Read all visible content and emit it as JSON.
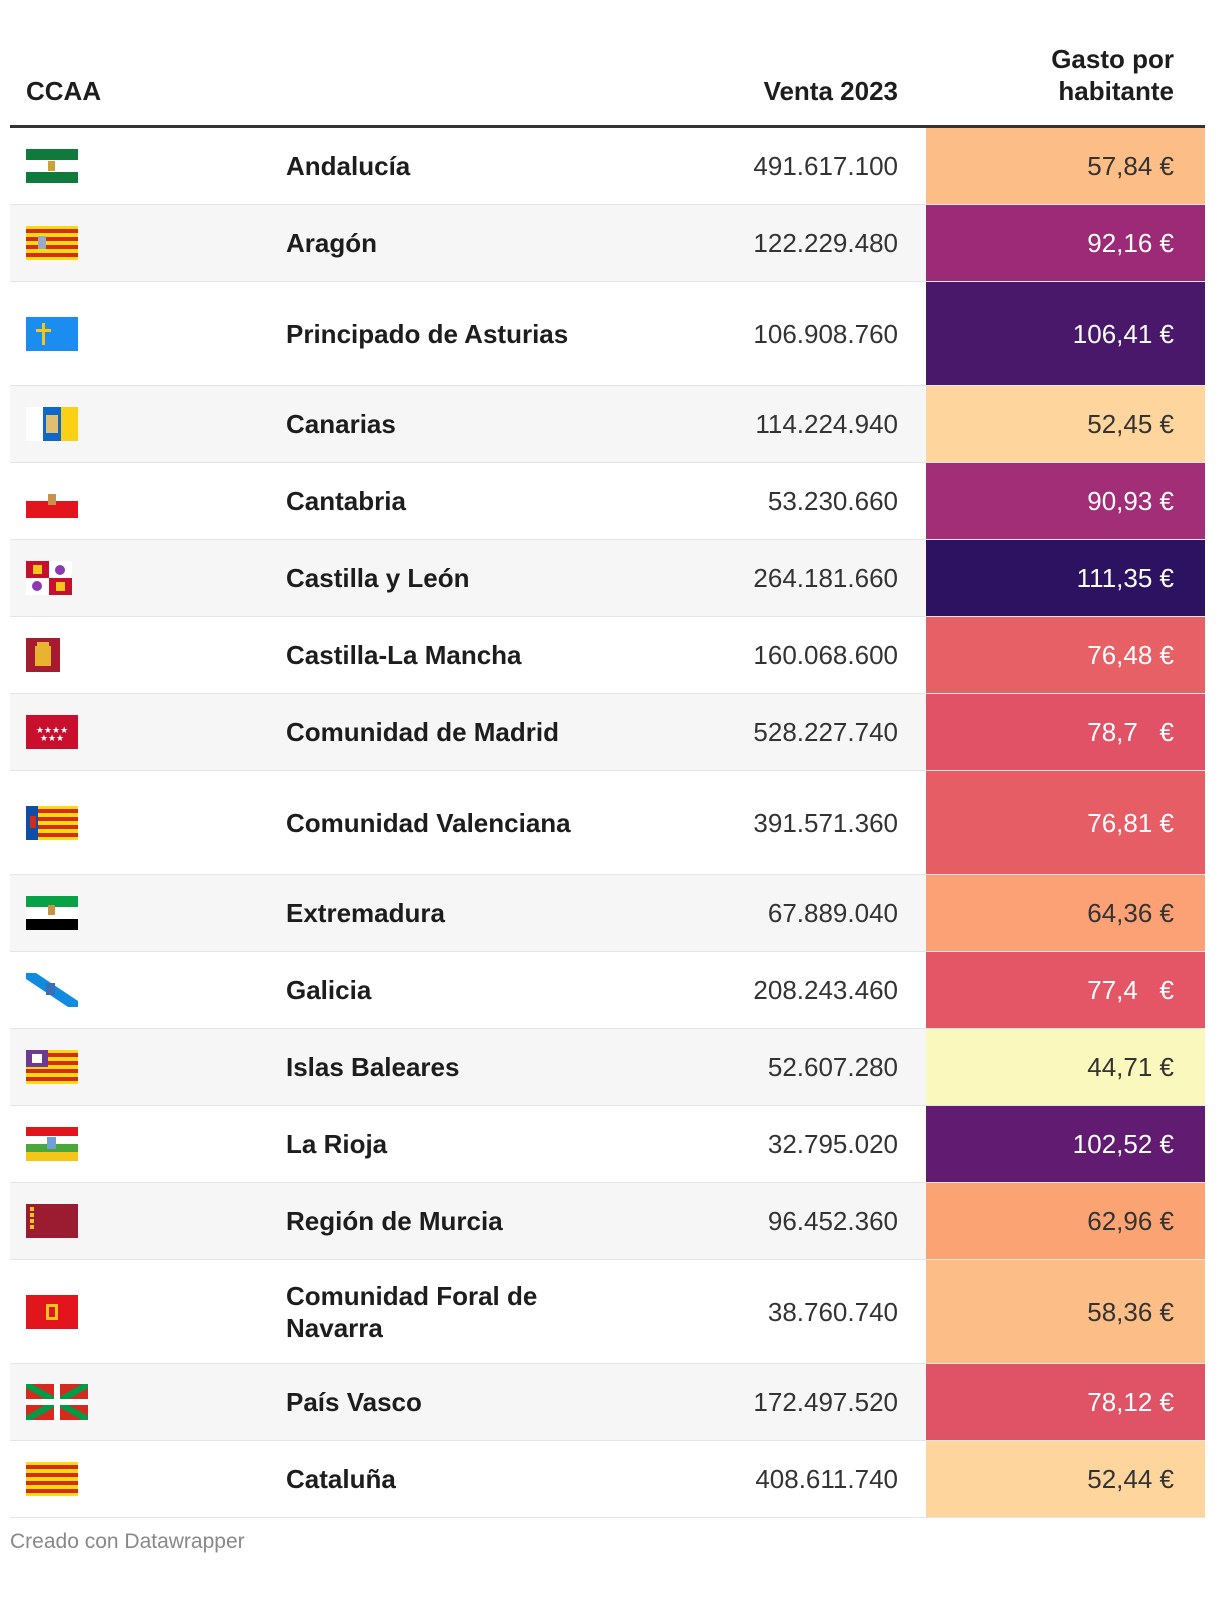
{
  "header": {
    "ccaa": "CCAA",
    "venta": "Venta 2023",
    "gasto": "Gasto por habitante"
  },
  "rows": [
    {
      "name": "Andalucía",
      "venta": "491.617.100",
      "gasto": "57,84 €",
      "value": 57.84,
      "flag": "flag-andalucia-icon",
      "color": "#fdbd86",
      "text_color": "#333333"
    },
    {
      "name": "Aragón",
      "venta": "122.229.480",
      "gasto": "92,16 €",
      "value": 92.16,
      "flag": "flag-aragon-icon",
      "color": "#9d2a77",
      "text_color": "#ffffff"
    },
    {
      "name": "Principado de Asturias",
      "venta": "106.908.760",
      "gasto": "106,41 €",
      "value": 106.41,
      "flag": "flag-asturias-icon",
      "color": "#4a186a",
      "text_color": "#ffffff",
      "tall": true
    },
    {
      "name": "Canarias",
      "venta": "114.224.940",
      "gasto": "52,45 €",
      "value": 52.45,
      "flag": "flag-canarias-icon",
      "color": "#fed59d",
      "text_color": "#333333"
    },
    {
      "name": "Cantabria",
      "venta": "53.230.660",
      "gasto": "90,93 €",
      "value": 90.93,
      "flag": "flag-cantabria-icon",
      "color": "#a22e78",
      "text_color": "#ffffff"
    },
    {
      "name": "Castilla y León",
      "venta": "264.181.660",
      "gasto": "111,35 €",
      "value": 111.35,
      "flag": "flag-castilla-leon-icon",
      "color": "#2c1260",
      "text_color": "#ffffff"
    },
    {
      "name": "Castilla-La Mancha",
      "venta": "160.068.600",
      "gasto": "76,48 €",
      "value": 76.48,
      "flag": "flag-castilla-la-mancha-icon",
      "color": "#e76065",
      "text_color": "#ffffff"
    },
    {
      "name": "Comunidad de Madrid",
      "venta": "528.227.740",
      "gasto": "78,7   €",
      "value": 78.7,
      "flag": "flag-madrid-icon",
      "color": "#e25266",
      "text_color": "#ffffff"
    },
    {
      "name": "Comunidad Valenciana",
      "venta": "391.571.360",
      "gasto": "76,81 €",
      "value": 76.81,
      "flag": "flag-valenciana-icon",
      "color": "#e65d66",
      "text_color": "#ffffff",
      "tall": true
    },
    {
      "name": "Extremadura",
      "venta": "67.889.040",
      "gasto": "64,36 €",
      "value": 64.36,
      "flag": "flag-extremadura-icon",
      "color": "#fca176",
      "text_color": "#333333"
    },
    {
      "name": "Galicia",
      "venta": "208.243.460",
      "gasto": "77,4   €",
      "value": 77.4,
      "flag": "flag-galicia-icon",
      "color": "#e45666",
      "text_color": "#ffffff"
    },
    {
      "name": "Islas Baleares",
      "venta": "52.607.280",
      "gasto": "44,71 €",
      "value": 44.71,
      "flag": "flag-baleares-icon",
      "color": "#fbf8be",
      "text_color": "#333333"
    },
    {
      "name": "La Rioja",
      "venta": "32.795.020",
      "gasto": "102,52 €",
      "value": 102.52,
      "flag": "flag-rioja-icon",
      "color": "#611c72",
      "text_color": "#ffffff"
    },
    {
      "name": "Región de Murcia",
      "venta": "96.452.360",
      "gasto": "62,96 €",
      "value": 62.96,
      "flag": "flag-murcia-icon",
      "color": "#fca374",
      "text_color": "#333333"
    },
    {
      "name": "Comunidad Foral de Navarra",
      "venta": "38.760.740",
      "gasto": "58,36 €",
      "value": 58.36,
      "flag": "flag-navarra-icon",
      "color": "#fdbd86",
      "text_color": "#333333",
      "tall": true
    },
    {
      "name": "País Vasco",
      "venta": "172.497.520",
      "gasto": "78,12 €",
      "value": 78.12,
      "flag": "flag-pais-vasco-icon",
      "color": "#e05266",
      "text_color": "#ffffff"
    },
    {
      "name": "Cataluña",
      "venta": "408.611.740",
      "gasto": "52,44 €",
      "value": 52.44,
      "flag": "flag-cataluna-icon",
      "color": "#fed59d",
      "text_color": "#333333"
    }
  ],
  "footer": "Creado con Datawrapper",
  "chart_data": {
    "type": "table",
    "columns": [
      "CCAA",
      "Venta 2023",
      "Gasto por habitante"
    ],
    "categories": [
      "Andalucía",
      "Aragón",
      "Principado de Asturias",
      "Canarias",
      "Cantabria",
      "Castilla y León",
      "Castilla-La Mancha",
      "Comunidad de Madrid",
      "Comunidad Valenciana",
      "Extremadura",
      "Galicia",
      "Islas Baleares",
      "La Rioja",
      "Región de Murcia",
      "Comunidad Foral de Navarra",
      "País Vasco",
      "Cataluña"
    ],
    "series": [
      {
        "name": "Venta 2023",
        "values": [
          491617100,
          122229480,
          106908760,
          114224940,
          53230660,
          264181660,
          160068600,
          528227740,
          391571360,
          67889040,
          208243460,
          52607280,
          32795020,
          96452360,
          38760740,
          172497520,
          408611740
        ]
      },
      {
        "name": "Gasto por habitante",
        "values": [
          57.84,
          92.16,
          106.41,
          52.45,
          90.93,
          111.35,
          76.48,
          78.7,
          76.81,
          64.36,
          77.4,
          44.71,
          102.52,
          62.96,
          58.36,
          78.12,
          52.44
        ]
      }
    ]
  }
}
